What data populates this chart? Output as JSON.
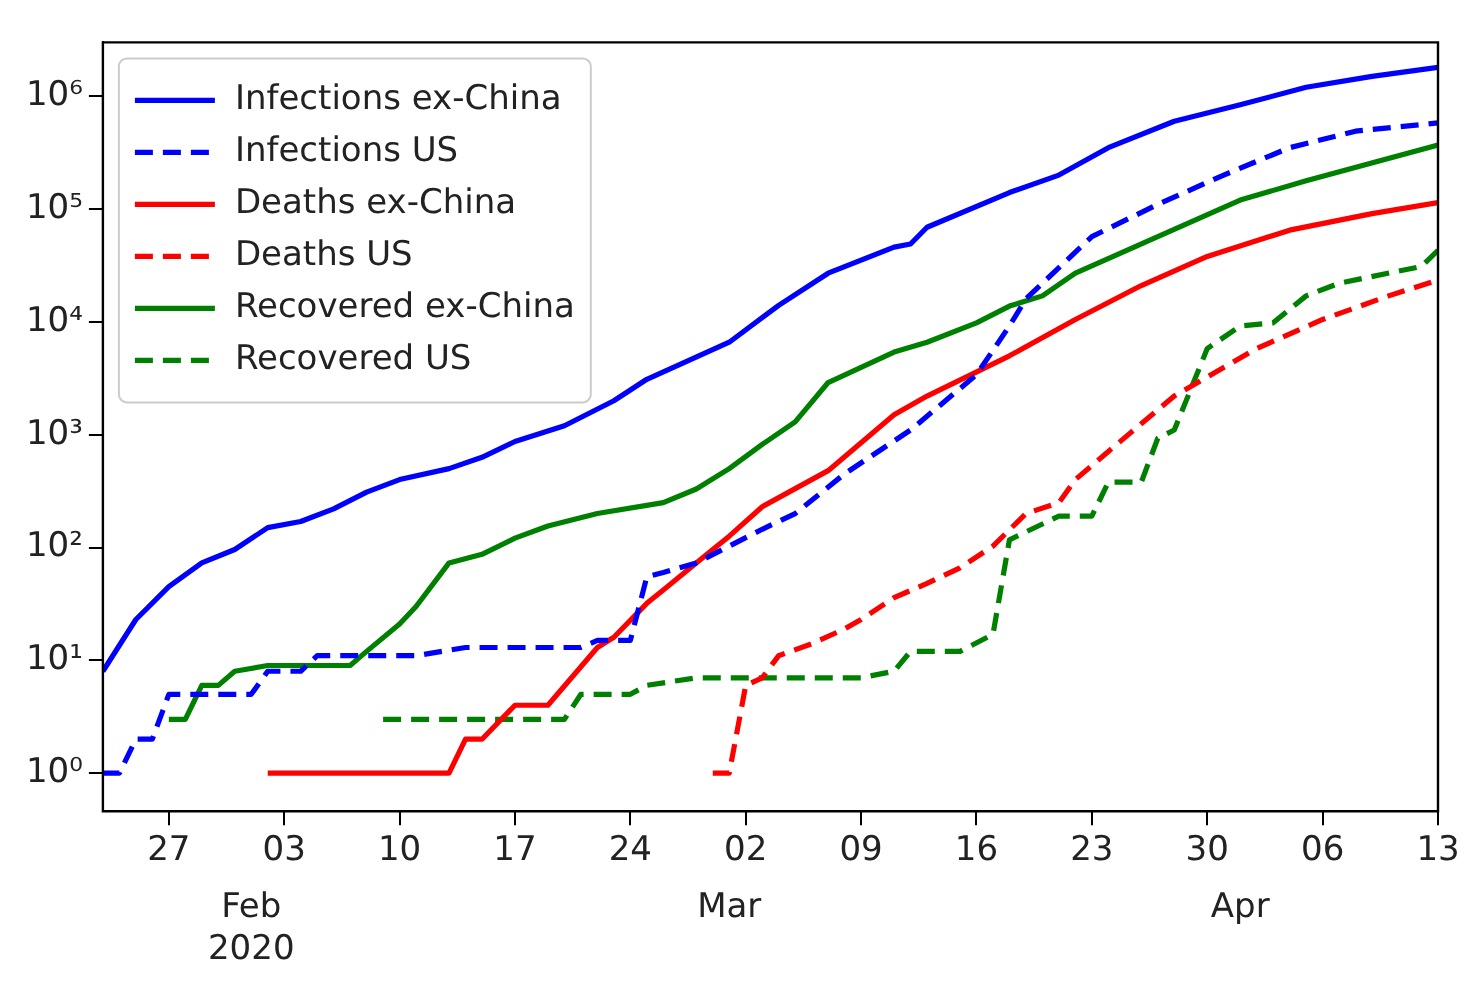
{
  "chart_data": {
    "type": "line",
    "log": "y",
    "legend": "top left",
    "marker": "none",
    "grid": false,
    "xlim": [
      "2020-01-23",
      "2020-04-13"
    ],
    "ylim": [
      0.46,
      3000000
    ],
    "xticks": [
      {
        "value": "2020-01-27",
        "label": "27"
      },
      {
        "value": "2020-02-03",
        "label": "03"
      },
      {
        "value": "2020-02-10",
        "label": "10"
      },
      {
        "value": "2020-02-17",
        "label": "17"
      },
      {
        "value": "2020-02-24",
        "label": "24"
      },
      {
        "value": "2020-03-02",
        "label": "02"
      },
      {
        "value": "2020-03-09",
        "label": "09"
      },
      {
        "value": "2020-03-16",
        "label": "16"
      },
      {
        "value": "2020-03-23",
        "label": "23"
      },
      {
        "value": "2020-03-30",
        "label": "30"
      },
      {
        "value": "2020-04-06",
        "label": "06"
      },
      {
        "value": "2020-04-13",
        "label": "13"
      }
    ],
    "annotations": [
      "Feb\n2020",
      "Mar",
      "Apr"
    ],
    "yticks": [
      {
        "value": 1,
        "label": "10⁰"
      },
      {
        "value": 10,
        "label": "10¹"
      },
      {
        "value": 100,
        "label": "10²"
      },
      {
        "value": 1000,
        "label": "10³"
      },
      {
        "value": 10000,
        "label": "10⁴"
      },
      {
        "value": 100000,
        "label": "10⁵"
      },
      {
        "value": 1000000,
        "label": "10⁶"
      }
    ],
    "series": [
      {
        "name": "Infections ex-China",
        "color": "#0000ff",
        "line_style": "solid",
        "x": [
          "2020-01-23",
          "2020-01-25",
          "2020-01-27",
          "2020-01-29",
          "2020-01-31",
          "2020-02-02",
          "2020-02-04",
          "2020-02-06",
          "2020-02-08",
          "2020-02-10",
          "2020-02-13",
          "2020-02-15",
          "2020-02-17",
          "2020-02-20",
          "2020-02-23",
          "2020-02-25",
          "2020-03-01",
          "2020-03-04",
          "2020-03-07",
          "2020-03-11",
          "2020-03-12",
          "2020-03-13",
          "2020-03-18",
          "2020-03-21",
          "2020-03-24",
          "2020-03-28",
          "2020-04-01",
          "2020-04-05",
          "2020-04-09",
          "2020-04-13"
        ],
        "values": [
          8,
          23,
          45,
          73,
          96,
          150,
          170,
          220,
          310,
          400,
          500,
          630,
          870,
          1200,
          2000,
          3100,
          6600,
          14000,
          27000,
          46000,
          49000,
          69000,
          140000,
          200000,
          350000,
          600000,
          840000,
          1200000,
          1500000,
          1800000
        ]
      },
      {
        "name": "Infections US",
        "color": "#0000ff",
        "line_style": "dashed",
        "x": [
          "2020-01-23",
          "2020-01-24",
          "2020-01-25",
          "2020-01-26",
          "2020-01-27",
          "2020-02-01",
          "2020-02-02",
          "2020-02-04",
          "2020-02-05",
          "2020-02-11",
          "2020-02-14",
          "2020-02-21",
          "2020-02-22",
          "2020-02-24",
          "2020-02-25",
          "2020-02-26",
          "2020-02-28",
          "2020-03-03",
          "2020-03-05",
          "2020-03-08",
          "2020-03-12",
          "2020-03-16",
          "2020-03-18",
          "2020-03-19",
          "2020-03-23",
          "2020-03-27",
          "2020-03-31",
          "2020-04-04",
          "2020-04-08",
          "2020-04-13"
        ],
        "values": [
          1,
          1,
          2,
          2,
          5,
          5,
          8,
          8,
          11,
          11,
          13,
          13,
          15,
          15,
          55,
          60,
          73,
          145,
          200,
          450,
          1100,
          3400,
          9200,
          16000,
          57000,
          110000,
          200000,
          350000,
          490000,
          580000
        ]
      },
      {
        "name": "Deaths ex-China",
        "color": "#ff0000",
        "line_style": "solid",
        "x": [
          "2020-02-02",
          "2020-02-13",
          "2020-02-14",
          "2020-02-15",
          "2020-02-17",
          "2020-02-19",
          "2020-02-22",
          "2020-02-23",
          "2020-02-25",
          "2020-02-26",
          "2020-02-29",
          "2020-03-01",
          "2020-03-03",
          "2020-03-07",
          "2020-03-11",
          "2020-03-13",
          "2020-03-18",
          "2020-03-22",
          "2020-03-26",
          "2020-03-30",
          "2020-04-04",
          "2020-04-09",
          "2020-04-13"
        ],
        "values": [
          1,
          1,
          2,
          2,
          4,
          4,
          13,
          16,
          32,
          42,
          96,
          126,
          230,
          480,
          1500,
          2200,
          5000,
          10500,
          21000,
          38000,
          65000,
          91000,
          114000
        ]
      },
      {
        "name": "Deaths US",
        "color": "#ff0000",
        "line_style": "dashed",
        "x": [
          "2020-02-29",
          "2020-03-01",
          "2020-03-02",
          "2020-03-03",
          "2020-03-04",
          "2020-03-06",
          "2020-03-08",
          "2020-03-09",
          "2020-03-11",
          "2020-03-13",
          "2020-03-15",
          "2020-03-17",
          "2020-03-19",
          "2020-03-21",
          "2020-03-22",
          "2020-03-24",
          "2020-03-28",
          "2020-04-02",
          "2020-04-06",
          "2020-04-10",
          "2020-04-13"
        ],
        "values": [
          1,
          1,
          6,
          7,
          11,
          14,
          19,
          23,
          36,
          48,
          66,
          103,
          200,
          250,
          400,
          710,
          2200,
          5800,
          10500,
          17000,
          23500
        ]
      },
      {
        "name": "Recovered ex-China",
        "color": "#008000",
        "line_style": "solid",
        "x": [
          "2020-01-27",
          "2020-01-28",
          "2020-01-29",
          "2020-01-30",
          "2020-01-31",
          "2020-02-02",
          "2020-02-07",
          "2020-02-08",
          "2020-02-10",
          "2020-02-11",
          "2020-02-13",
          "2020-02-15",
          "2020-02-17",
          "2020-02-19",
          "2020-02-22",
          "2020-02-26",
          "2020-02-28",
          "2020-03-01",
          "2020-03-03",
          "2020-03-05",
          "2020-03-07",
          "2020-03-11",
          "2020-03-13",
          "2020-03-16",
          "2020-03-18",
          "2020-03-20",
          "2020-03-22",
          "2020-03-27",
          "2020-04-01",
          "2020-04-05",
          "2020-04-13"
        ],
        "values": [
          3,
          3,
          6,
          6,
          8,
          9,
          9,
          12,
          21,
          30,
          73,
          87,
          121,
          155,
          200,
          250,
          330,
          500,
          820,
          1300,
          2900,
          5400,
          6600,
          9800,
          13800,
          17000,
          27000,
          57000,
          120000,
          178000,
          370000
        ]
      },
      {
        "name": "Recovered US",
        "color": "#008000",
        "line_style": "dashed",
        "x": [
          "2020-02-09",
          "2020-02-20",
          "2020-02-21",
          "2020-02-24",
          "2020-02-25",
          "2020-02-28",
          "2020-03-09",
          "2020-03-11",
          "2020-03-12",
          "2020-03-15",
          "2020-03-17",
          "2020-03-18",
          "2020-03-21",
          "2020-03-23",
          "2020-03-24",
          "2020-03-26",
          "2020-03-27",
          "2020-03-28",
          "2020-03-30",
          "2020-04-01",
          "2020-04-03",
          "2020-04-05",
          "2020-04-07",
          "2020-04-12",
          "2020-04-13"
        ],
        "values": [
          3,
          3,
          5,
          5,
          6,
          7,
          7,
          8,
          12,
          12,
          17,
          117,
          190,
          190,
          380,
          380,
          930,
          1100,
          5800,
          9200,
          9800,
          17000,
          22000,
          31000,
          43000
        ]
      }
    ]
  }
}
